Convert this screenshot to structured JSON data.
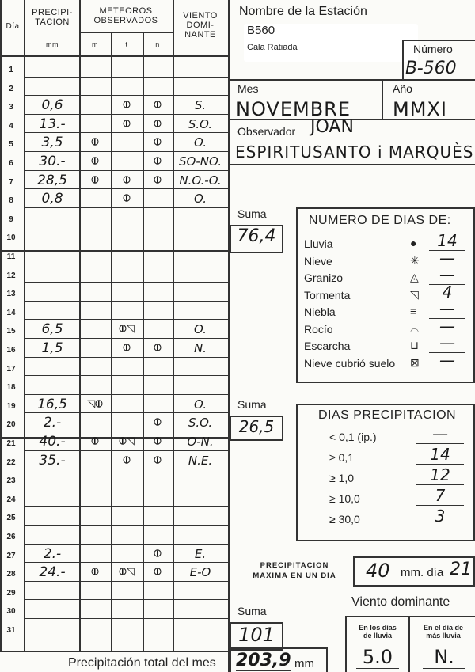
{
  "header": {
    "dia": "Día",
    "precip": "PRECIPI-\nTACION",
    "precip_unit": "mm",
    "meteoros": "METEOROS\nOBSERVADOS",
    "m": "m",
    "t": "t",
    "n": "n",
    "viento": "VIENTO\nDOMI-\nNANTE"
  },
  "rows": [
    {
      "day": "1",
      "p": "",
      "m": "",
      "t": "",
      "n": "",
      "w": ""
    },
    {
      "day": "2",
      "p": "",
      "m": "",
      "t": "",
      "n": "",
      "w": ""
    },
    {
      "day": "3",
      "p": "0,6",
      "m": "",
      "t": "rain",
      "n": "rain",
      "w": "S."
    },
    {
      "day": "4",
      "p": "13.-",
      "m": "",
      "t": "rain",
      "n": "rain",
      "w": "S.O."
    },
    {
      "day": "5",
      "p": "3,5",
      "m": "rain",
      "t": "",
      "n": "rain",
      "w": "O."
    },
    {
      "day": "6",
      "p": "30.-",
      "m": "rain",
      "t": "",
      "n": "rain",
      "w": "SO-NO."
    },
    {
      "day": "7",
      "p": "28,5",
      "m": "rain",
      "t": "rain",
      "n": "rain",
      "w": "N.O.-O."
    },
    {
      "day": "8",
      "p": "0,8",
      "m": "",
      "t": "rain",
      "n": "",
      "w": "O."
    },
    {
      "day": "9",
      "p": "",
      "m": "",
      "t": "",
      "n": "",
      "w": ""
    },
    {
      "day": "10",
      "p": "",
      "m": "",
      "t": "",
      "n": "",
      "w": ""
    },
    {
      "day": "11",
      "p": "",
      "m": "",
      "t": "",
      "n": "",
      "w": ""
    },
    {
      "day": "12",
      "p": "",
      "m": "",
      "t": "",
      "n": "",
      "w": ""
    },
    {
      "day": "13",
      "p": "",
      "m": "",
      "t": "",
      "n": "",
      "w": ""
    },
    {
      "day": "14",
      "p": "",
      "m": "",
      "t": "",
      "n": "",
      "w": ""
    },
    {
      "day": "15",
      "p": "6,5",
      "m": "",
      "t": "rain storm",
      "n": "",
      "w": "O."
    },
    {
      "day": "16",
      "p": "1,5",
      "m": "",
      "t": "rain",
      "n": "rain",
      "w": "N."
    },
    {
      "day": "17",
      "p": "",
      "m": "",
      "t": "",
      "n": "",
      "w": ""
    },
    {
      "day": "18",
      "p": "",
      "m": "",
      "t": "",
      "n": "",
      "w": ""
    },
    {
      "day": "19",
      "p": "16,5",
      "m": "storm rain",
      "t": "",
      "n": "",
      "w": "O."
    },
    {
      "day": "20",
      "p": "2.-",
      "m": "",
      "t": "",
      "n": "rain",
      "w": "S.O."
    },
    {
      "day": "21",
      "p": "40.-",
      "m": "rain",
      "t": "rain storm",
      "n": "rain",
      "w": "O-N."
    },
    {
      "day": "22",
      "p": "35.-",
      "m": "",
      "t": "rain",
      "n": "rain",
      "w": "N.E."
    },
    {
      "day": "23",
      "p": "",
      "m": "",
      "t": "",
      "n": "",
      "w": ""
    },
    {
      "day": "24",
      "p": "",
      "m": "",
      "t": "",
      "n": "",
      "w": ""
    },
    {
      "day": "25",
      "p": "",
      "m": "",
      "t": "",
      "n": "",
      "w": ""
    },
    {
      "day": "26",
      "p": "",
      "m": "",
      "t": "",
      "n": "",
      "w": ""
    },
    {
      "day": "27",
      "p": "2.-",
      "m": "",
      "t": "",
      "n": "rain",
      "w": "E."
    },
    {
      "day": "28",
      "p": "24.-",
      "m": "rain",
      "t": "rain storm",
      "n": "rain",
      "w": "E-O"
    },
    {
      "day": "29",
      "p": "",
      "m": "",
      "t": "",
      "n": "",
      "w": ""
    },
    {
      "day": "30",
      "p": "",
      "m": "",
      "t": "",
      "n": "",
      "w": ""
    },
    {
      "day": "31",
      "p": "",
      "m": "",
      "t": "",
      "n": "",
      "w": ""
    }
  ],
  "station": {
    "label": "Nombre de la Estación",
    "code": "B560",
    "name": "Cala Ratiada",
    "numero_label": "Número",
    "numero": "B-560"
  },
  "mes": {
    "label": "Mes",
    "value": "NOVEMBRE"
  },
  "anio": {
    "label": "Año",
    "value": "MMXI"
  },
  "observador": {
    "label": "Observador",
    "name1": "JOAN",
    "name2": "ESPIRITUSANTO i MARQUÈS"
  },
  "sumas": {
    "label": "Suma",
    "s1": "76,4",
    "s2": "26,5",
    "s3": "101"
  },
  "numero_dias": {
    "title": "NUMERO DE DIAS DE:",
    "items": [
      {
        "label": "Lluvia",
        "icon": "●",
        "value": "14"
      },
      {
        "label": "Nieve",
        "icon": "✳",
        "value": "—"
      },
      {
        "label": "Granizo",
        "icon": "◬",
        "value": "—"
      },
      {
        "label": "Tormenta",
        "icon": "◹",
        "value": "4"
      },
      {
        "label": "Niebla",
        "icon": "≡",
        "value": "—"
      },
      {
        "label": "Rocío",
        "icon": "⌓",
        "value": "—"
      },
      {
        "label": "Escarcha",
        "icon": "⊔",
        "value": "—"
      },
      {
        "label": "Nieve cubrió suelo",
        "icon": "⊠",
        "value": "—"
      }
    ]
  },
  "dias_precip": {
    "title": "DIAS PRECIPITACION",
    "items": [
      {
        "label": "< 0,1 (ip.)",
        "value": "—"
      },
      {
        "label": "≥ 0,1",
        "value": "14"
      },
      {
        "label": "≥ 1,0",
        "value": "12"
      },
      {
        "label": "≥ 10,0",
        "value": "7"
      },
      {
        "label": "≥ 30,0",
        "value": "3"
      }
    ]
  },
  "max": {
    "label": "PRECIPITACION\nMAXIMA EN UN DIA",
    "value": "40",
    "unit": "mm. día",
    "day": "21"
  },
  "viento": {
    "title": "Viento dominante",
    "lluvia_label": "En los dias\nde lluvia",
    "lluvia_value": "5.0",
    "max_label": "En el dia de\nmás lluvia",
    "max_value": "N."
  },
  "total": {
    "label": "Precipitación total del mes",
    "value": "203,9",
    "unit": "mm"
  },
  "symbols": {
    "rain": "⦶",
    "storm": "◹"
  }
}
